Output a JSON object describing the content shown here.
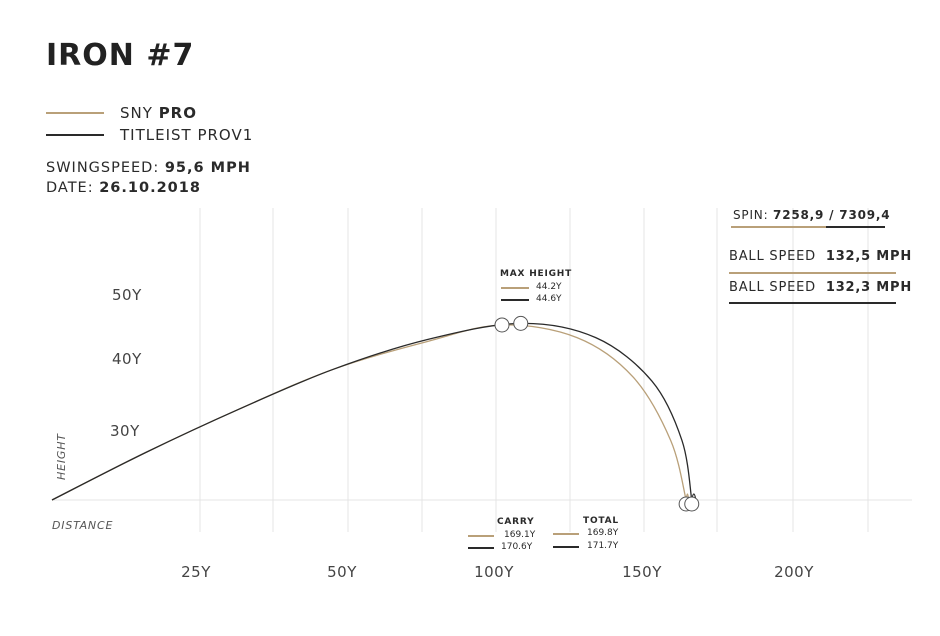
{
  "title": "IRON #7",
  "legend": [
    {
      "prefix": "SNY ",
      "bold": "PRO",
      "color": "#b9a079"
    },
    {
      "prefix": "TITLEIST PROV1",
      "bold": "",
      "color": "#2a2a2a"
    }
  ],
  "swingspeed": {
    "label": "SWINGSPEED:",
    "value": "95,6 MPH"
  },
  "date": {
    "label": "DATE:",
    "value": "26.10.2018"
  },
  "spin": {
    "label": "SPIN:",
    "value": "7258,9 / 7309,4"
  },
  "ball_speed": [
    {
      "label": "BALL SPEED",
      "value": "132,5 MPH",
      "color": "#b9a079"
    },
    {
      "label": "BALL SPEED",
      "value": "132,3 MPH",
      "color": "#2a2a2a"
    }
  ],
  "max_height": {
    "label": "MAX HEIGHT",
    "values": [
      "44.2Y",
      "44.6Y"
    ]
  },
  "carry": {
    "label": "CARRY",
    "values": [
      "169.1Y",
      "170.6Y"
    ]
  },
  "total": {
    "label": "TOTAL",
    "values": [
      "169.8Y",
      "171.7Y"
    ]
  },
  "chart_data": {
    "type": "line",
    "xlabel": "DISTANCE",
    "ylabel": "HEIGHT",
    "x_ticks": [
      "25Y",
      "50Y",
      "100Y",
      "150Y",
      "200Y"
    ],
    "y_ticks": [
      "30Y",
      "40Y",
      "50Y"
    ],
    "grid": true,
    "series": [
      {
        "name": "SNY PRO",
        "color": "#b9a079",
        "points": [
          [
            0,
            0
          ],
          [
            25,
            12
          ],
          [
            50,
            23
          ],
          [
            75,
            33
          ],
          [
            100,
            40
          ],
          [
            120,
            44.2
          ],
          [
            140,
            41
          ],
          [
            155,
            31
          ],
          [
            165,
            15
          ],
          [
            169.1,
            0
          ],
          [
            169.8,
            0
          ]
        ]
      },
      {
        "name": "TITLEIST PROV1",
        "color": "#2a2a2a",
        "points": [
          [
            0,
            0
          ],
          [
            25,
            12
          ],
          [
            50,
            23
          ],
          [
            75,
            33
          ],
          [
            100,
            40.5
          ],
          [
            125,
            44.6
          ],
          [
            145,
            41
          ],
          [
            160,
            30
          ],
          [
            168,
            15
          ],
          [
            170.6,
            0
          ],
          [
            171.7,
            0
          ]
        ]
      }
    ]
  }
}
